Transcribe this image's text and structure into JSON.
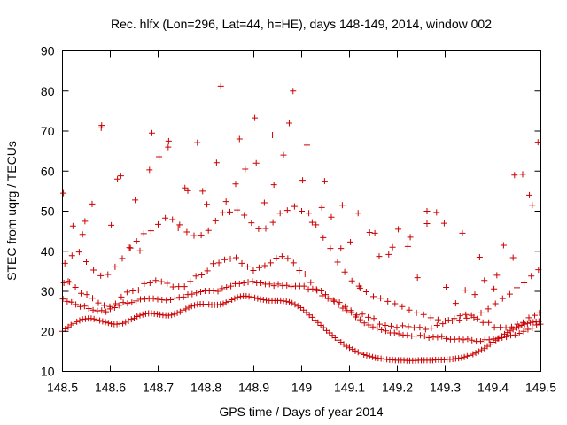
{
  "chart_data": {
    "type": "scatter",
    "title": "Rec. hlfx (Lon=296, Lat=44, h=HE), days 148-149, 2014, window 002",
    "xlabel": "GPS time / Days of year 2014",
    "ylabel": "STEC from uqrg / TECUs",
    "xlim": [
      148.5,
      149.5
    ],
    "ylim": [
      10,
      90
    ],
    "xticks": [
      "148.5",
      "148.6",
      "148.7",
      "148.8",
      "148.9",
      "149",
      "149.1",
      "149.2",
      "149.3",
      "149.4",
      "149.5"
    ],
    "yticks": [
      "10",
      "20",
      "30",
      "40",
      "50",
      "60",
      "70",
      "80",
      "90"
    ],
    "grid": false,
    "legend": "none",
    "marker": "plus",
    "color": "#cc0000",
    "series": [
      {
        "x": [
          148.5,
          148.506,
          148.512,
          148.518,
          148.524,
          148.53,
          148.536,
          148.542,
          148.548,
          148.554,
          148.56,
          148.566,
          148.572,
          148.578,
          148.584,
          148.59,
          148.596,
          148.602,
          148.608,
          148.614,
          148.62,
          148.626,
          148.632,
          148.638,
          148.644,
          148.65,
          148.656,
          148.662,
          148.668,
          148.674,
          148.68,
          148.686,
          148.692,
          148.698,
          148.704,
          148.71,
          148.716,
          148.722,
          148.728,
          148.734,
          148.74,
          148.746,
          148.752,
          148.758,
          148.764,
          148.77,
          148.776,
          148.782,
          148.788,
          148.794,
          148.8,
          148.806,
          148.812,
          148.818,
          148.824,
          148.83,
          148.836,
          148.842,
          148.848,
          148.854,
          148.86,
          148.866,
          148.872,
          148.878,
          148.884,
          148.89,
          148.896,
          148.902,
          148.908,
          148.914,
          148.92,
          148.926,
          148.932,
          148.938,
          148.944,
          148.95,
          148.956,
          148.962,
          148.968,
          148.974,
          148.98,
          148.986,
          148.992,
          148.998,
          149.004,
          149.01,
          149.016,
          149.022,
          149.028,
          149.034,
          149.04,
          149.046,
          149.052,
          149.058,
          149.064,
          149.07,
          149.076,
          149.082,
          149.088,
          149.094,
          149.1,
          149.106,
          149.112,
          149.118,
          149.124,
          149.13,
          149.136,
          149.142,
          149.148,
          149.154,
          149.16,
          149.166,
          149.172,
          149.178,
          149.184,
          149.19,
          149.196,
          149.202,
          149.208,
          149.214,
          149.22,
          149.226,
          149.232,
          149.238,
          149.244,
          149.25,
          149.256,
          149.262,
          149.268,
          149.274,
          149.28,
          149.286,
          149.292,
          149.298,
          149.304,
          149.31,
          149.316,
          149.322,
          149.328,
          149.334,
          149.34,
          149.346,
          149.352,
          149.358,
          149.364,
          149.37,
          149.376,
          149.382,
          149.388,
          149.394,
          149.4,
          149.406,
          149.412,
          149.418,
          149.424,
          149.43,
          149.436,
          149.442,
          149.448,
          149.454,
          149.46,
          149.466,
          149.472,
          149.478,
          149.484,
          149.49,
          149.496
        ],
        "y": [
          20.0,
          20.6,
          21.1,
          21.6,
          22.0,
          22.4,
          22.7,
          23.0,
          23.1,
          23.2,
          23.2,
          23.1,
          22.9,
          22.7,
          22.5,
          22.3,
          22.1,
          21.9,
          21.8,
          21.8,
          21.9,
          22.0,
          22.3,
          22.6,
          23.0,
          23.3,
          23.7,
          24.0,
          24.2,
          24.4,
          24.5,
          24.5,
          24.4,
          24.3,
          24.2,
          24.1,
          24.0,
          24.0,
          24.1,
          24.3,
          24.6,
          24.9,
          25.3,
          25.6,
          26.0,
          26.3,
          26.5,
          26.7,
          26.8,
          26.8,
          26.8,
          26.7,
          26.6,
          26.6,
          26.6,
          26.7,
          26.9,
          27.2,
          27.5,
          27.9,
          28.2,
          28.5,
          28.7,
          28.8,
          28.8,
          28.7,
          28.6,
          28.4,
          28.2,
          28.0,
          27.9,
          27.8,
          27.7,
          27.7,
          27.7,
          27.7,
          27.7,
          27.6,
          27.5,
          27.3,
          27.1,
          26.7,
          26.3,
          25.9,
          25.3,
          24.7,
          24.1,
          23.5,
          22.8,
          22.2,
          21.5,
          20.9,
          20.2,
          19.6,
          19.0,
          18.4,
          17.8,
          17.3,
          16.8,
          16.3,
          15.9,
          15.5,
          15.1,
          14.8,
          14.5,
          14.2,
          14.0,
          13.8,
          13.6,
          13.4,
          13.3,
          13.2,
          13.1,
          13.0,
          12.9,
          12.9,
          12.8,
          12.8,
          12.8,
          12.8,
          12.7,
          12.7,
          12.7,
          12.7,
          12.8,
          12.8,
          12.8,
          12.8,
          12.8,
          12.8,
          12.9,
          12.9,
          12.9,
          12.9,
          13.0,
          13.0,
          13.1,
          13.2,
          13.3,
          13.4,
          13.6,
          13.8,
          14.0,
          14.3,
          14.6,
          15.0,
          15.4,
          15.8,
          16.3,
          16.8,
          17.3,
          17.8,
          18.3,
          18.8,
          19.3,
          19.7,
          20.1,
          20.5,
          20.9,
          21.2,
          21.5,
          21.8,
          22.0,
          22.2,
          22.3,
          22.4,
          22.5
        ]
      },
      {
        "x": [
          148.501,
          148.51,
          148.519,
          148.528,
          148.537,
          148.546,
          148.555,
          148.564,
          148.573,
          148.582,
          148.591,
          148.6,
          148.609,
          148.618,
          148.627,
          148.636,
          148.645,
          148.654,
          148.663,
          148.672,
          148.681,
          148.69,
          148.699,
          148.708,
          148.717,
          148.726,
          148.735,
          148.744,
          148.753,
          148.762,
          148.771,
          148.78,
          148.789,
          148.798,
          148.807,
          148.816,
          148.825,
          148.834,
          148.843,
          148.852,
          148.861,
          148.87,
          148.879,
          148.888,
          148.897,
          148.906,
          148.915,
          148.924,
          148.933,
          148.942,
          148.951,
          148.96,
          148.969,
          148.978,
          148.987,
          148.996,
          149.005,
          149.014,
          149.023,
          149.032,
          149.041,
          149.05,
          149.059,
          149.068,
          149.077,
          149.086,
          149.095,
          149.104,
          149.113,
          149.122,
          149.131,
          149.14,
          149.149,
          149.158,
          149.167,
          149.176,
          149.185,
          149.194,
          149.203,
          149.212,
          149.221,
          149.23,
          149.239,
          149.248,
          149.257,
          149.266,
          149.275,
          149.284,
          149.293,
          149.302,
          149.311,
          149.32,
          149.329,
          149.338,
          149.347,
          149.356,
          149.365,
          149.374,
          149.383,
          149.392,
          149.401,
          149.41,
          149.419,
          149.428,
          149.437,
          149.446,
          149.455,
          149.464,
          149.473,
          149.482,
          149.491,
          149.499
        ],
        "y": [
          28.1,
          27.5,
          27.3,
          26.7,
          26.2,
          26.3,
          25.7,
          25.3,
          25.1,
          25.2,
          24.9,
          25.6,
          25.9,
          26.5,
          27.2,
          27.0,
          27.2,
          27.6,
          28.0,
          28.1,
          28.2,
          28.2,
          28.0,
          27.9,
          27.8,
          27.9,
          28.3,
          28.5,
          28.6,
          29.2,
          29.3,
          29.6,
          29.9,
          30.1,
          30.1,
          30.1,
          30.0,
          30.7,
          31.0,
          31.3,
          31.9,
          31.9,
          32.1,
          32.3,
          32.5,
          32.1,
          32.1,
          31.8,
          31.8,
          31.4,
          31.8,
          31.4,
          31.5,
          31.2,
          31.3,
          31.3,
          31.3,
          30.5,
          30.6,
          30.2,
          30.1,
          29.2,
          28.2,
          27.5,
          26.6,
          25.8,
          25.2,
          24.7,
          23.6,
          22.9,
          22.1,
          21.6,
          21.1,
          20.8,
          20.4,
          20.1,
          19.6,
          19.6,
          19.4,
          19.1,
          19.0,
          18.8,
          18.8,
          19.0,
          18.8,
          18.4,
          18.6,
          18.5,
          18.7,
          18.2,
          18.0,
          18.0,
          18.1,
          17.9,
          18.1,
          17.8,
          17.5,
          17.5,
          17.9,
          17.9,
          18.1,
          18.2,
          18.4,
          18.6,
          19.0,
          19.1,
          19.5,
          20.0,
          20.5,
          20.8,
          21.6,
          21.8
        ]
      },
      {
        "x": [
          148.503,
          148.515,
          148.527,
          148.539,
          148.551,
          148.563,
          148.575,
          148.587,
          148.599,
          148.611,
          148.623,
          148.635,
          148.647,
          148.659,
          148.671,
          148.683,
          148.695,
          148.707,
          148.719,
          148.731,
          148.743,
          148.755,
          148.767,
          148.779,
          148.791,
          148.803,
          148.815,
          148.827,
          148.839,
          148.851,
          148.863,
          148.875,
          148.887,
          148.899,
          148.911,
          148.923,
          148.935,
          148.947,
          148.959,
          148.971,
          148.983,
          148.995,
          149.007,
          149.019,
          149.031,
          149.043,
          149.055,
          149.067,
          149.079,
          149.091,
          149.103,
          149.115,
          149.127,
          149.139,
          149.151,
          149.163,
          149.175,
          149.187,
          149.199,
          149.211,
          149.223,
          149.235,
          149.247,
          149.259,
          149.271,
          149.283,
          149.295,
          149.307,
          149.319,
          149.331,
          149.343,
          149.355,
          149.367,
          149.379,
          149.391,
          149.403,
          149.415,
          149.427,
          149.439,
          149.451,
          149.463,
          149.475,
          149.487,
          149.497
        ],
        "y": [
          32.1,
          32.3,
          31.0,
          29.5,
          29.2,
          28.3,
          27.1,
          26.5,
          26.2,
          26.9,
          28.6,
          29.8,
          30.1,
          30.3,
          31.9,
          32.1,
          32.7,
          32.4,
          32.0,
          31.1,
          31.2,
          31.2,
          32.5,
          33.8,
          34.1,
          35.1,
          36.9,
          37.1,
          37.9,
          38.1,
          38.4,
          37.0,
          36.1,
          35.2,
          35.9,
          36.4,
          37.1,
          38.3,
          38.7,
          38.2,
          37.1,
          35.2,
          34.3,
          32.2,
          30.5,
          28.9,
          28.2,
          27.8,
          27.2,
          26.2,
          25.2,
          24.1,
          24.3,
          23.5,
          23.2,
          21.8,
          21.5,
          21.3,
          21.0,
          21.4,
          21.2,
          20.9,
          21.0,
          20.5,
          20.8,
          21.5,
          21.9,
          22.8,
          23.2,
          23.9,
          24.2,
          24.0,
          23.1,
          22.2,
          22.2,
          21.0,
          21.0,
          20.9,
          21.1,
          21.8,
          22.2,
          23.4,
          24.0,
          24.6
        ]
      },
      {
        "x": [
          148.505,
          148.52,
          148.535,
          148.55,
          148.565,
          148.58,
          148.595,
          148.61,
          148.625,
          148.64,
          148.655,
          148.67,
          148.685,
          148.7,
          148.715,
          148.73,
          148.745,
          148.76,
          148.775,
          148.79,
          148.805,
          148.82,
          148.835,
          148.85,
          148.865,
          148.88,
          148.895,
          148.91,
          148.925,
          148.94,
          148.955,
          148.97,
          148.985,
          149.0,
          149.015,
          149.03,
          149.045,
          149.06,
          149.075,
          149.09,
          149.105,
          149.12,
          149.135,
          149.15,
          149.165,
          149.18,
          149.195,
          149.21,
          149.225,
          149.24,
          149.255,
          149.27,
          149.285,
          149.3,
          149.315,
          149.33,
          149.345,
          149.36,
          149.375,
          149.39,
          149.405,
          149.42,
          149.435,
          149.45,
          149.465,
          149.48,
          149.495
        ],
        "y": [
          37.0,
          38.9,
          39.8,
          37.4,
          35.3,
          33.9,
          34.2,
          36.1,
          38.2,
          40.9,
          42.5,
          44.4,
          45.1,
          46.7,
          48.3,
          47.9,
          46.6,
          44.8,
          43.9,
          44.0,
          45.2,
          47.6,
          49.6,
          49.8,
          50.3,
          49.0,
          47.1,
          45.6,
          45.7,
          47.2,
          49.5,
          50.2,
          51.2,
          50.0,
          49.5,
          46.6,
          43.4,
          40.7,
          37.3,
          34.8,
          32.6,
          31.3,
          29.9,
          28.7,
          28.3,
          27.5,
          26.9,
          26.2,
          25.3,
          24.6,
          24.2,
          23.4,
          22.9,
          22.6,
          22.6,
          22.8,
          23.3,
          23.5,
          24.6,
          25.6,
          26.9,
          28.2,
          29.3,
          30.9,
          32.1,
          33.8,
          35.4
        ]
      },
      {
        "x": [
          148.502,
          148.522,
          148.542,
          148.562,
          148.582,
          148.602,
          148.622,
          148.642,
          148.662,
          148.682,
          148.702,
          148.722,
          148.742,
          148.762,
          148.782,
          148.802,
          148.822,
          148.842,
          148.862,
          148.882,
          148.902,
          148.922,
          148.942,
          148.962,
          148.982,
          149.002,
          149.022,
          149.042,
          149.062,
          149.082,
          149.102,
          149.122,
          149.142,
          149.162,
          149.182,
          149.202,
          149.222,
          149.242,
          149.262,
          149.282,
          149.302,
          149.322,
          149.342,
          149.362,
          149.382,
          149.402,
          149.422,
          149.442,
          149.462,
          149.482
        ],
        "y": [
          54.5,
          46.3,
          44.2,
          51.8,
          71.4,
          46.5,
          58.8,
          40.8,
          40.1,
          60.3,
          63.6,
          67.5,
          45.8,
          55.1,
          67.1,
          51.7,
          62.1,
          52.4,
          56.8,
          60.5,
          73.3,
          52.1,
          56.6,
          64.0,
          80.0,
          57.7,
          47.2,
          50.9,
          48.5,
          40.7,
          42.3,
          30.8,
          44.7,
          38.7,
          39.2,
          45.5,
          41.2,
          33.4,
          46.9,
          49.7,
          31.0,
          27.0,
          30.3,
          29.2,
          32.7,
          30.6,
          41.5,
          38.4,
          59.2,
          51.5
        ]
      },
      {
        "x": [
          148.512,
          148.547,
          148.581,
          148.615,
          148.652,
          148.687,
          148.721,
          148.756,
          148.793,
          148.831,
          148.87,
          148.905,
          148.939,
          148.974,
          149.011,
          149.048,
          149.085,
          149.118,
          149.153,
          149.19,
          149.227,
          149.262,
          149.298,
          149.336,
          149.372,
          149.408,
          149.445,
          149.476,
          149.494
        ],
        "y": [
          32.5,
          47.5,
          70.8,
          58.0,
          52.8,
          69.5,
          66.0,
          55.8,
          55.0,
          81.2,
          68.0,
          62.0,
          69.0,
          72.0,
          66.5,
          57.5,
          51.5,
          49.5,
          44.5,
          41.0,
          43.5,
          50.0,
          47.0,
          44.5,
          38.5,
          34.0,
          59.0,
          54.0,
          67.2
        ]
      }
    ]
  }
}
